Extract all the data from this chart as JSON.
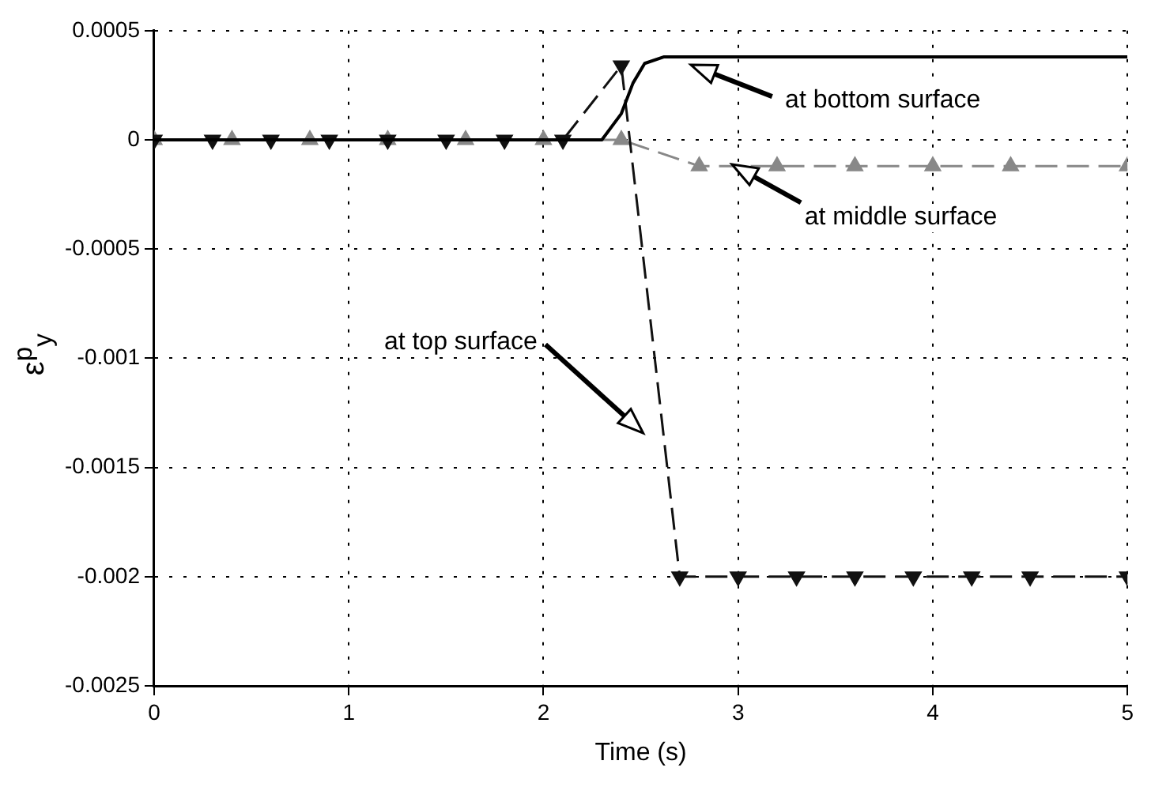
{
  "chart_data": {
    "type": "line",
    "xlabel": "Time (s)",
    "ylabel": "ε$^{p}$$_{y}$",
    "xlim": [
      0,
      5
    ],
    "xticks": [
      0,
      1,
      2,
      3,
      4,
      5
    ],
    "ylim": [
      -0.0025,
      0.0005
    ],
    "yticks": [
      0.0005,
      0,
      -0.0005,
      -0.001,
      -0.0015,
      -0.002,
      -0.0025
    ],
    "grid": true,
    "legend": false,
    "series": [
      {
        "color": "#000000",
        "line_style": "solid",
        "marker": "none",
        "x": [
          0,
          2.3,
          2.4,
          2.46,
          2.52,
          2.62,
          2.7,
          5
        ],
        "values": [
          0,
          0,
          0.00012,
          0.00026,
          0.00035,
          0.00038,
          0.00038,
          0.00038
        ]
      },
      {
        "color": "#111111",
        "line_style": "dashed",
        "marker": "triangle",
        "x": [
          0,
          0.3,
          0.6,
          0.9,
          1.2,
          1.5,
          1.8,
          2.1,
          2.4,
          2.7,
          3.0,
          3.3,
          3.6,
          3.9,
          4.2,
          4.5,
          5
        ],
        "values": [
          0,
          0,
          0,
          0,
          0,
          0,
          0,
          0,
          0.00034,
          -0.002,
          -0.002,
          -0.002,
          -0.002,
          -0.002,
          -0.002,
          -0.002,
          -0.002
        ]
      },
      {
        "color": "#888888",
        "line_style": "dashed",
        "marker": "triangle",
        "x": [
          0,
          0.4,
          0.8,
          1.2,
          1.6,
          2.0,
          2.4,
          2.8,
          3.2,
          3.6,
          4.0,
          4.4,
          5
        ],
        "values": [
          0,
          0,
          0,
          0,
          0,
          0,
          0,
          -0.00012,
          -0.00012,
          -0.00012,
          -0.00012,
          -0.00012,
          -0.00012
        ]
      }
    ],
    "annotations": [
      "at bottom surface",
      "at middle surface",
      "at top surface"
    ]
  }
}
